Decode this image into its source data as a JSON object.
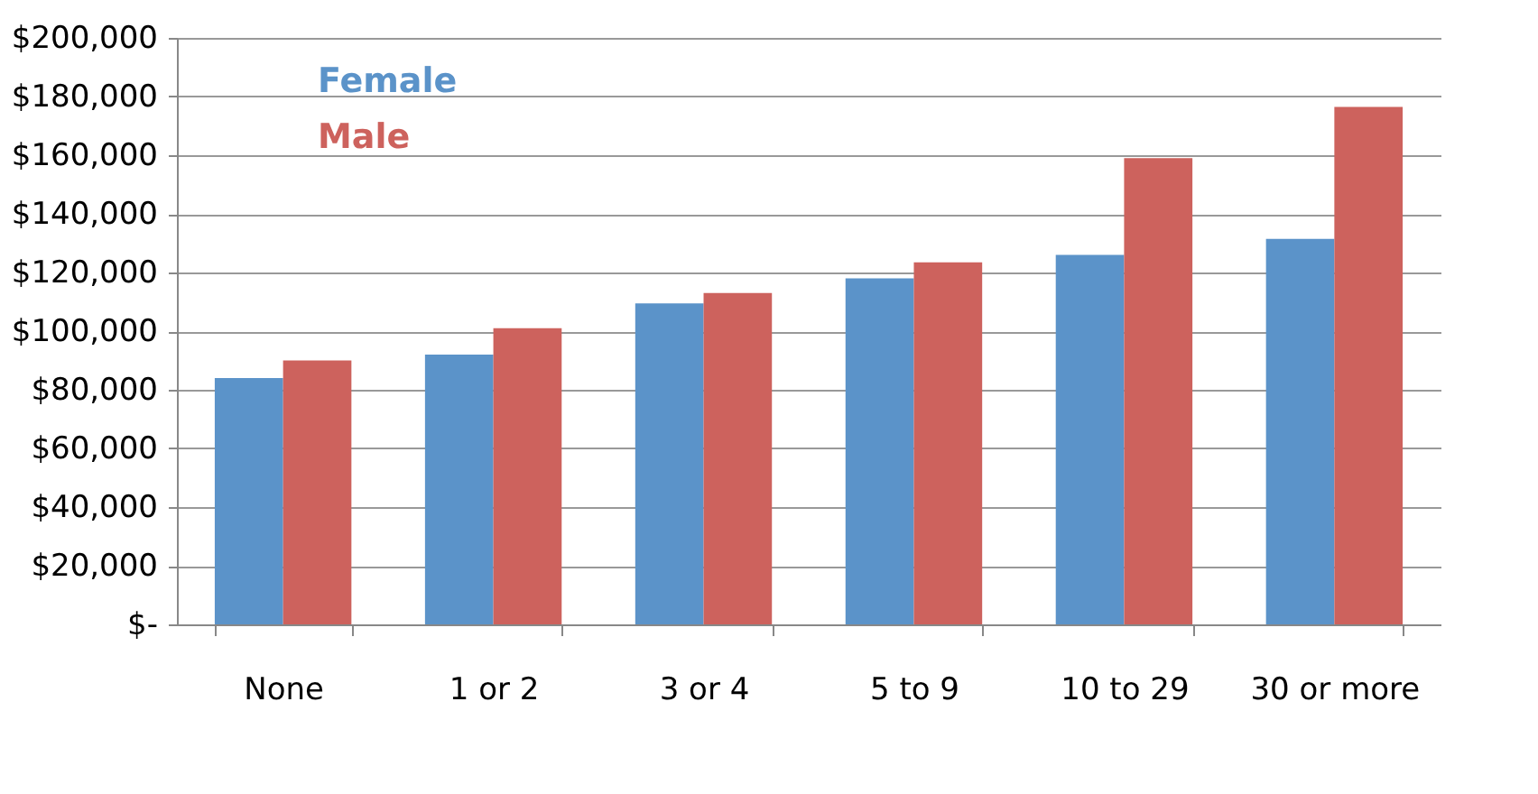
{
  "chart_data": {
    "type": "bar",
    "categories": [
      "None",
      "1 or 2",
      "3 or 4",
      "5 to 9",
      "10 to 29",
      "30 or more"
    ],
    "series": [
      {
        "name": "Female",
        "color": "#5b93c9",
        "values": [
          84000,
          92000,
          109500,
          118000,
          126000,
          131500
        ]
      },
      {
        "name": "Male",
        "color": "#cd625d",
        "values": [
          90000,
          101000,
          113000,
          123500,
          159000,
          176500
        ]
      }
    ],
    "ylim": [
      0,
      200000
    ],
    "yticks": [
      {
        "value": 0,
        "label": "$-"
      },
      {
        "value": 20000,
        "label": "$20,000"
      },
      {
        "value": 40000,
        "label": "$40,000"
      },
      {
        "value": 60000,
        "label": "$60,000"
      },
      {
        "value": 80000,
        "label": "$80,000"
      },
      {
        "value": 100000,
        "label": "$100,000"
      },
      {
        "value": 120000,
        "label": "$120,000"
      },
      {
        "value": 140000,
        "label": "$140,000"
      },
      {
        "value": 160000,
        "label": "$160,000"
      },
      {
        "value": 180000,
        "label": "$180,000"
      },
      {
        "value": 200000,
        "label": "$200,000"
      }
    ],
    "grid": "y",
    "legend": "top left"
  }
}
